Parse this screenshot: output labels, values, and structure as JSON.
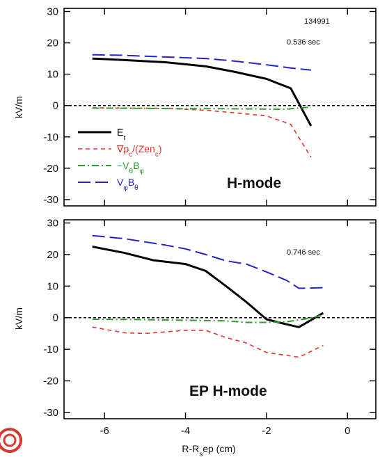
{
  "chart_data": [
    {
      "type": "line",
      "panel": "top",
      "mode_label": "H-mode",
      "annotations": [
        "134991",
        "0.536 sec"
      ],
      "ylabel": "kV/m",
      "xlim": [
        -7,
        0.7
      ],
      "ylim": [
        -32,
        31
      ],
      "yticks": [
        -30,
        -20,
        -10,
        0,
        10,
        20,
        30
      ],
      "zero_line": true,
      "legend": "bottom-left",
      "series": [
        {
          "name": "E_r",
          "color": "#000000",
          "dash": "solid",
          "width": 3,
          "x": [
            -6.3,
            -5.5,
            -4.5,
            -3.5,
            -2.8,
            -2.0,
            -1.4,
            -0.9
          ],
          "y": [
            15,
            14.5,
            13.8,
            12.5,
            10.8,
            8.5,
            5.5,
            -6.5
          ]
        },
        {
          "name": "∇p_c/(Zen_c)",
          "color": "#e8312b",
          "dash": "6,5",
          "width": 1.6,
          "x": [
            -6.3,
            -5.5,
            -4.5,
            -3.5,
            -2.8,
            -2.0,
            -1.4,
            -0.9
          ],
          "y": [
            -0.7,
            -0.8,
            -0.9,
            -1.5,
            -2.3,
            -3.3,
            -6.0,
            -16.5
          ]
        },
        {
          "name": "−V_θB_φ",
          "color": "#2f9a2f",
          "dash": "10,4,2,4",
          "width": 2,
          "x": [
            -6.3,
            -5.0,
            -4.0,
            -3.0,
            -2.2,
            -1.6,
            -1.2,
            -0.9
          ],
          "y": [
            -0.8,
            -0.9,
            -1.0,
            -1.0,
            -1.1,
            -1.2,
            -0.8,
            -0.5
          ]
        },
        {
          "name": "V_φB_θ",
          "color": "#2424c8",
          "dash": "18,7",
          "width": 2,
          "x": [
            -6.3,
            -5.5,
            -4.5,
            -3.5,
            -2.8,
            -2.0,
            -1.4,
            -0.9
          ],
          "y": [
            16.2,
            16.0,
            15.5,
            15.0,
            14.2,
            13.0,
            12.0,
            11.3
          ]
        }
      ]
    },
    {
      "type": "line",
      "panel": "bottom",
      "mode_label": "EP H-mode",
      "annotations": [
        "0.746 sec"
      ],
      "ylabel": "kV/m",
      "xlabel": "R-R_sep (cm)",
      "xlim": [
        -7,
        0.7
      ],
      "xticks": [
        -6,
        -4,
        -2,
        0
      ],
      "ylim": [
        -32,
        31
      ],
      "yticks": [
        -30,
        -20,
        -10,
        0,
        10,
        20,
        30
      ],
      "zero_line": true,
      "series": [
        {
          "name": "E_r",
          "color": "#000000",
          "dash": "solid",
          "width": 3,
          "x": [
            -6.3,
            -5.5,
            -4.8,
            -4.0,
            -3.5,
            -3.0,
            -2.5,
            -2.0,
            -1.6,
            -1.2,
            -0.6
          ],
          "y": [
            22.5,
            20.5,
            18.2,
            17.0,
            14.8,
            10.0,
            5.0,
            -0.5,
            -1.8,
            -3.0,
            1.5
          ]
        },
        {
          "name": "∇p_c/(Zen_c)",
          "color": "#e8312b",
          "dash": "6,5",
          "width": 1.6,
          "x": [
            -6.3,
            -5.5,
            -5.0,
            -4.0,
            -3.5,
            -3.0,
            -2.5,
            -2.0,
            -1.2,
            -0.6
          ],
          "y": [
            -3.0,
            -4.8,
            -5.0,
            -4.0,
            -4.0,
            -6.3,
            -8.0,
            -11.0,
            -12.5,
            -8.8
          ]
        },
        {
          "name": "−V_θB_φ",
          "color": "#2f9a2f",
          "dash": "10,4,2,4",
          "width": 2,
          "x": [
            -6.3,
            -5.0,
            -4.0,
            -3.0,
            -2.5,
            -2.0,
            -1.5,
            -1.0,
            -0.6
          ],
          "y": [
            -0.5,
            -0.6,
            -0.8,
            -1.0,
            -1.5,
            -1.5,
            -1.3,
            -0.3,
            0.8
          ]
        },
        {
          "name": "V_φB_θ",
          "color": "#2424c8",
          "dash": "18,7",
          "width": 2,
          "x": [
            -6.3,
            -5.5,
            -4.5,
            -4.0,
            -3.5,
            -3.0,
            -2.5,
            -2.0,
            -1.5,
            -1.2,
            -0.6
          ],
          "y": [
            26.0,
            25.0,
            23.0,
            21.8,
            20.0,
            18.0,
            17.0,
            14.5,
            11.8,
            9.3,
            9.5
          ]
        }
      ]
    }
  ]
}
